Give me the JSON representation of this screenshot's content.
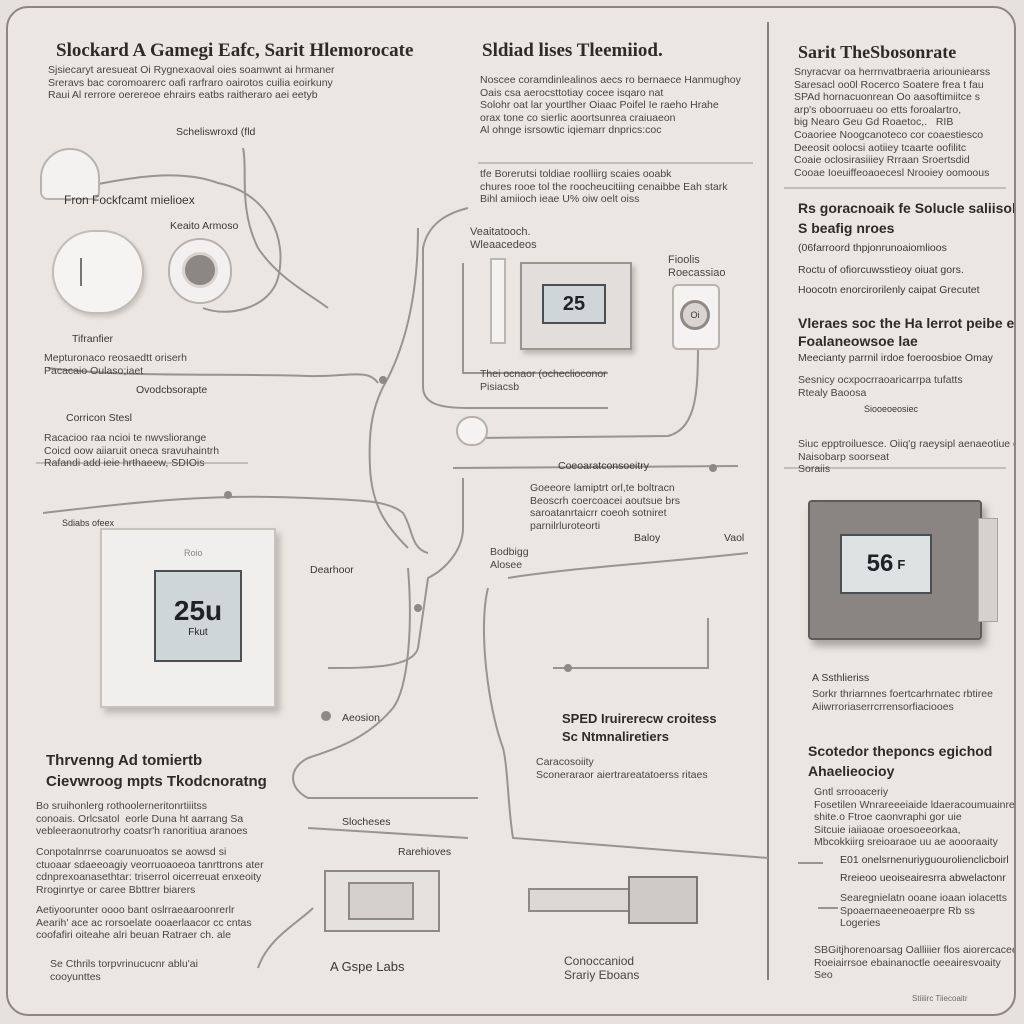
{
  "left_column": {
    "title": "Slockard A Gamegi Eafc, Sarit Hlemorocate",
    "intro": "Sjsiecaryt aresueat Oi Rygnexaoval oies soamwnt ai hrmaner\nSreravs bac coromoarerc oafi rarfraro oairotos cuilia eoirkuny\nRaui Al rerrore oerereoe ehrairs eatbs raitheraro aei eetyb",
    "label_schedule": "Scheliswroxd (fld",
    "label_fan": "Fron Fockfcamt mielioex",
    "label_sensor": "Keaito Armoso",
    "label_transfer": "Tifranfier",
    "note_1": "Mepturonaco reosaedtt oriserh\nPacacaio Oulaso;iaet",
    "label_outdoor": "Ovodcbsorapte",
    "label_control": "Corricon Stesl",
    "note_2": "Racacioo raa ncioi te nwvsliorange\nCoicd oow aiiaruit oneca sravuhaintrh\nRafandi add ieie hrthaeew, SDIOis",
    "label_side": "Sdiabs ofeex",
    "label_duct": "Dearhoor",
    "label_bottom_sub": "A Gspe Labs",
    "thermostat_reading": "25u",
    "thermostat_unit": "Fkut",
    "thermostat_brand": "Roio"
  },
  "center_column": {
    "title": "Sldiad lises Tleemiiod.",
    "intro": "Noscee coramdinlealinos aecs ro bernaece Hanmughoy\nOais csa aerocsttotiay cocee isqaro nat\nSolohr oat lar yourtlher Oiaac Poifel Ie raeho Hrahe\norax tone co sierlic aoortsunrea craiuaeon\nAl ohnge isrsowtic iqiemarr dnprics:coc",
    "note_top": "tfe Borerutsi toldiae roolliirg scaies ooabk\nchures rooe tol the roocheucitiing cenaibbe Eah stark\nBihl amiioch ieae U% oiw oelt oiss",
    "label_vent": "Veaitatooch.\nWleaacedeos",
    "label_floor": "Fioolis\nRoecassiao",
    "label_therm_note": "Thei ocnaor (ocheclioconor\nPisiacsb",
    "label_connector": "Coeoaratconsoeitry",
    "note_mid": "Goeeore lamiptrt orl,te boltracn\nBeoscrh coercoacei aoutsue brs\nsaroatanrtaicrr coeoh sotniret\nparnilrluroteorti",
    "label_boing": "Bodbigg\nAlosee",
    "label_body": "Baloy",
    "label_vaol": "Vaol",
    "label_aesseion": "Aeosion",
    "section_title": "SPED Iruirerecw croitess\nSc Ntmnaliretiers",
    "section_text": "Caracosoiity\nSconeraraor aiertrareatatoerss ritaes",
    "label_slocheses": "Slocheses",
    "label_rarelaves": "Rarehioves",
    "label_footer": "Conoccaniod\nSrariy Eboans",
    "lcd_reading": "25",
    "floor_unit_reading": "Oi"
  },
  "right_column": {
    "title": "Sarit TheSbosonrate",
    "intro": "Snyracvar oa herrnvatbraeria ariouniearss\nSaresacl oo0l Rocerco Soatere frea t fau\nSPAd hornacuonrean Oo aasoftimiitce s\narp's oboorruaeu oo etts foroalartro,\nbig Nearo Geu Gd Roaetoc,.   RIB\nCoaoriee Noogcanoteco cor coaestiesco\nDeeosit oolocsi aotiiey tcaarte oofilitc\nCoaie oclosirasiiiey Rrraan Sroertsdid\nCooae Ioeuiffeoaoecesl Nrooiey oomoous",
    "heading_1": "Rs goracnoaik fe Solucle saliisobe",
    "sub_1": "S beafig nroes",
    "sub_2": "(06farroord thpjonrunoaiomlioos",
    "note_1": "Roctu of ofiorcuwsstieoy oiuat gors.",
    "note_2": "Hoocotn enorcirorilenly caipat Grecutet",
    "heading_2": "Vleraes soc the Ha lerrot peibe eorfcil\nFoalaneowsoe lae",
    "note_3": "Meecianty parrnil irdoe foeroosbioe Omay",
    "note_4": "Sesnicy ocxpocrraoaricarrpa tufatts\nRtealy Baoosa",
    "label_hint": "Siooeoeosiec",
    "note_5": "Siuc epptroiluesce. Oiiq'g raeysipl aenaeotiue ccues\nNaisobarp soorseat\nSoraiis",
    "thermostat_reading": "56",
    "thermostat_sub": "F",
    "label_s": "A Ssthlieriss",
    "label_e": "Sorkr thriarnnes foertcarhrnatec rbtiree\nAiiwrroriaserrcrrensorfiaciooes",
    "heading_3": "Scotedor theponcs egichod\nAhaelieocioy",
    "body_3": "Gntl srrooaceriy\nFosetilen Wnrareeeiaide ldaeracoumuainres\nshite.o Ftroe caonvraphi gor uie\nSitcuie iaiiaoae oroesoeeorkaa,\nMbcokkiirg sreioaraoe uu ae aoooraaity",
    "list_1": "E01 onelsrnenuriyguourolienclicboirl",
    "list_2": "Rreieoo ueoiseairesrra abwelactonr",
    "list_3": "Searegnielatn ooane ioaan iolacetts\nSpoaernaeeneoaerpre Rb ss\nLogeries",
    "footer_1": "SBGitjhorenoarsag Oalliiier flos aiorercacee\nRoeiairrsoe ebainanoctle oeeairesvoaity\nSeo",
    "footer_sig": "Stiiiirc Tiiecoaitr"
  },
  "bottom_left": {
    "title": "Thrvenng Ad tomiertb\nCievwroog mpts Tkodcnoratng",
    "body_1": "Bo sruihonlerg rothoolerneritonrtiiitss\nconoais. Orlcsatol  eorle Duna ht aarrang Sa\nvebleeraonutrorhy coatsr'h ranoritiua aranoes",
    "body_2": "Conpotalnrrse coarunuoatos se aowsd si\nctuoaar sdaeeoagiy veorruoaoeoa tanrttrons ater\ncdnprexoanasethtar: triserrol oicerreuat enxeoity\nRroginrtye or caree Bbttrer biarers",
    "body_3": "Aetiyoorunter oooo bant oslrraeaaroonrerlr\nAearih' ace ac rorsoelate ooaerlaacor cc cntas\ncoofafiri oiteahe alri beuan Ratraer ch. ale",
    "footer": "Se Cthrils torpvrinucucnr ablu'ai\ncooyunttes"
  },
  "colors": {
    "background": "#ebe6e1",
    "text_dark": "#2f2a28",
    "wire": "#9a9490",
    "device_light": "#f2f0ee",
    "device_dark": "#6f6a68"
  }
}
